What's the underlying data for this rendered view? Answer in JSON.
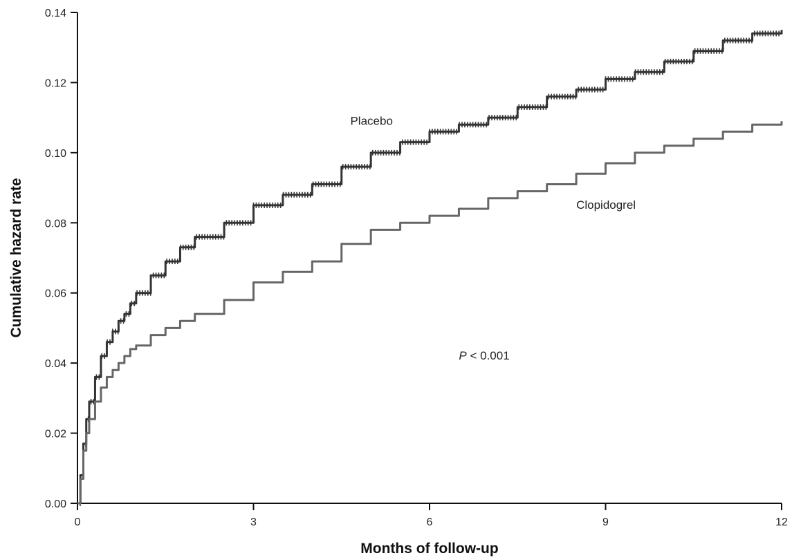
{
  "chart_data": {
    "type": "line",
    "xlabel": "Months of follow-up",
    "ylabel": "Cumulative hazard rate",
    "xlim": [
      0,
      12
    ],
    "ylim": [
      0,
      0.14
    ],
    "x_ticks": [
      0,
      3,
      6,
      9,
      12
    ],
    "x_tick_labels": [
      "0",
      "3",
      "6",
      "9",
      "12"
    ],
    "y_ticks": [
      0.0,
      0.02,
      0.04,
      0.06,
      0.08,
      0.1,
      0.12,
      0.14
    ],
    "y_tick_labels": [
      "0.00",
      "0.02",
      "0.04",
      "0.06",
      "0.08",
      "0.10",
      "0.12",
      "0.14"
    ],
    "grid": false,
    "series": [
      {
        "name": "Placebo",
        "color": "#333333",
        "marker": "plus",
        "x": [
          0,
          0.05,
          0.1,
          0.15,
          0.2,
          0.3,
          0.4,
          0.5,
          0.6,
          0.7,
          0.8,
          0.9,
          1.0,
          1.25,
          1.5,
          1.75,
          2.0,
          2.5,
          3.0,
          3.5,
          4.0,
          4.5,
          5.0,
          5.5,
          6.0,
          6.5,
          7.0,
          7.5,
          8.0,
          8.5,
          9.0,
          9.5,
          10.0,
          10.5,
          11.0,
          11.5,
          12.0
        ],
        "y": [
          0.0,
          0.008,
          0.017,
          0.024,
          0.029,
          0.036,
          0.042,
          0.046,
          0.049,
          0.052,
          0.054,
          0.057,
          0.06,
          0.065,
          0.069,
          0.073,
          0.076,
          0.08,
          0.085,
          0.088,
          0.091,
          0.096,
          0.1,
          0.103,
          0.106,
          0.108,
          0.11,
          0.113,
          0.116,
          0.118,
          0.121,
          0.123,
          0.126,
          0.129,
          0.132,
          0.134,
          0.135
        ]
      },
      {
        "name": "Clopidogrel",
        "color": "#666666",
        "marker": "none",
        "x": [
          0,
          0.05,
          0.1,
          0.15,
          0.2,
          0.3,
          0.4,
          0.5,
          0.6,
          0.7,
          0.8,
          0.9,
          1.0,
          1.25,
          1.5,
          1.75,
          2.0,
          2.5,
          3.0,
          3.5,
          4.0,
          4.5,
          5.0,
          5.5,
          6.0,
          6.5,
          7.0,
          7.5,
          8.0,
          8.5,
          9.0,
          9.5,
          10.0,
          10.5,
          11.0,
          11.5,
          12.0
        ],
        "y": [
          0.0,
          0.007,
          0.015,
          0.02,
          0.024,
          0.029,
          0.033,
          0.036,
          0.038,
          0.04,
          0.042,
          0.044,
          0.045,
          0.048,
          0.05,
          0.052,
          0.054,
          0.058,
          0.063,
          0.066,
          0.069,
          0.074,
          0.078,
          0.08,
          0.082,
          0.084,
          0.087,
          0.089,
          0.091,
          0.094,
          0.097,
          0.1,
          0.102,
          0.104,
          0.106,
          0.108,
          0.109
        ]
      }
    ],
    "annotations": [
      {
        "text": "P < 0.001",
        "italic_part": "P",
        "rest": " < 0.001",
        "x": 6.5,
        "y": 0.041
      },
      {
        "text": "Placebo",
        "x": 4.65,
        "y": 0.108
      },
      {
        "text": "Clopidogrel",
        "x": 8.5,
        "y": 0.084
      }
    ]
  }
}
